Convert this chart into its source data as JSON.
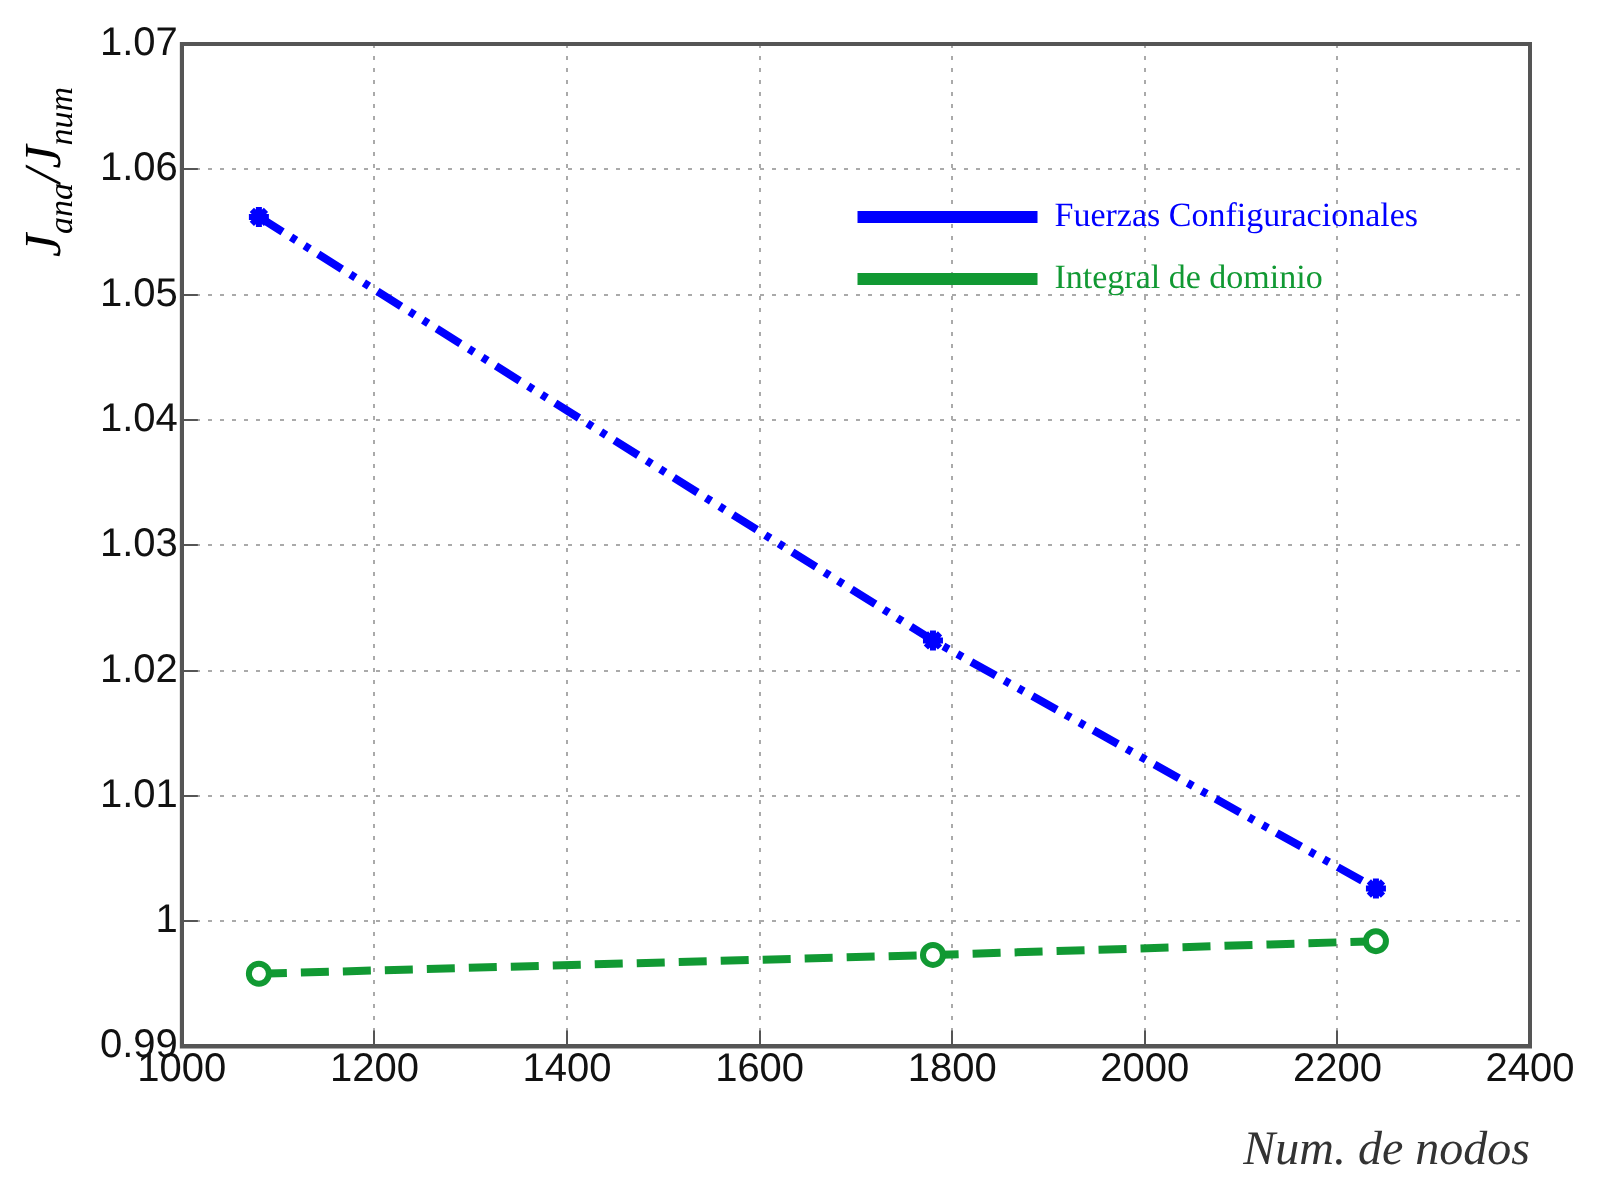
{
  "chart_data": {
    "type": "line",
    "xlabel": "Num. de nodos",
    "ylabel": "J$_{ana}$/J$_{num}$",
    "x": [
      1080,
      1780,
      2240
    ],
    "series": [
      {
        "name": "Fuerzas Configuracionales",
        "color": "#0000ff",
        "values": [
          1.0562,
          1.0224,
          1.0026
        ],
        "marker": "cross",
        "line_style": "dashdot"
      },
      {
        "name": "Integral de dominio",
        "color": "#119933",
        "values": [
          0.9958,
          0.9973,
          0.9984
        ],
        "marker": "circle",
        "line_style": "dashed"
      }
    ],
    "xlim": [
      1000,
      2400
    ],
    "xticks": [
      1000,
      1200,
      1400,
      1600,
      1800,
      2000,
      2200,
      2400
    ],
    "ylim": [
      0.99,
      1.07
    ],
    "yticks": [
      0.99,
      1,
      1.01,
      1.02,
      1.03,
      1.04,
      1.05,
      1.06,
      1.07
    ],
    "grid": true,
    "legend": "top right"
  }
}
